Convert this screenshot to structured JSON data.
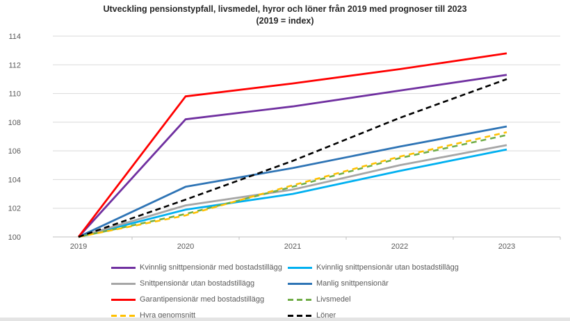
{
  "chart_data": {
    "type": "line",
    "title": "Utveckling pensionstypfall, livsmedel, hyror och löner från 2019 med prognoser till 2023",
    "subtitle": "(2019 = index)",
    "x": [
      "2019",
      "2020",
      "2021",
      "2022",
      "2023"
    ],
    "ylim": [
      100,
      114
    ],
    "yticks": [
      100,
      102,
      104,
      106,
      108,
      110,
      112,
      114
    ],
    "grid": true,
    "legend_position": "bottom",
    "style": {
      "background": "#FFFFFF",
      "grid_color": "#D9D9D9",
      "axis_color": "#BFBFBF",
      "tick_label_color": "#595959",
      "legend_text_color": "#595959",
      "title_color": "#262626"
    },
    "series": [
      {
        "id": "kvinnlig-snittpensionar-med-bostadstillagg",
        "name": "Kvinnlig snittpensionär med bostadstillägg",
        "color": "#7030A0",
        "dash": null,
        "values": [
          100,
          108.2,
          109.1,
          110.2,
          111.3
        ]
      },
      {
        "id": "kvinnlig-snittpensionar-utan-bostadstillagg",
        "name": "Kvinnlig snittpensionär utan bostadstillägg",
        "color": "#00B0F0",
        "dash": null,
        "values": [
          100,
          101.9,
          103.0,
          104.6,
          106.1
        ]
      },
      {
        "id": "snittpensionar-utan-bostadstillagg",
        "name": "Snittpensionär utan bostadstillägg",
        "color": "#A6A6A6",
        "dash": null,
        "values": [
          100,
          102.2,
          103.3,
          105.0,
          106.4
        ]
      },
      {
        "id": "manlig-snittpensionar",
        "name": "Manlig snittpensionär",
        "color": "#2E74B5",
        "dash": null,
        "values": [
          100,
          103.5,
          104.8,
          106.3,
          107.7
        ]
      },
      {
        "id": "garantipensionar-med-bostadstillagg",
        "name": "Garantipensionär med bostadstillägg",
        "color": "#FF0000",
        "dash": null,
        "values": [
          100,
          109.8,
          110.7,
          111.7,
          112.8
        ]
      },
      {
        "id": "livsmedel",
        "name": "Livsmedel",
        "color": "#70AD47",
        "dash": "8 6",
        "dash_offset": 7,
        "values": [
          100,
          101.6,
          103.5,
          105.5,
          107.1
        ]
      },
      {
        "id": "hyra-genomsnitt",
        "name": "Hyra genomsnitt",
        "color": "#FFC000",
        "dash": "8 6",
        "dash_offset": 0,
        "values": [
          100,
          101.5,
          103.6,
          105.6,
          107.3
        ]
      },
      {
        "id": "loner",
        "name": "Löner",
        "color": "#000000",
        "dash": "8 5",
        "dash_offset": 0,
        "values": [
          100,
          102.6,
          105.3,
          108.3,
          111.0
        ]
      }
    ]
  }
}
